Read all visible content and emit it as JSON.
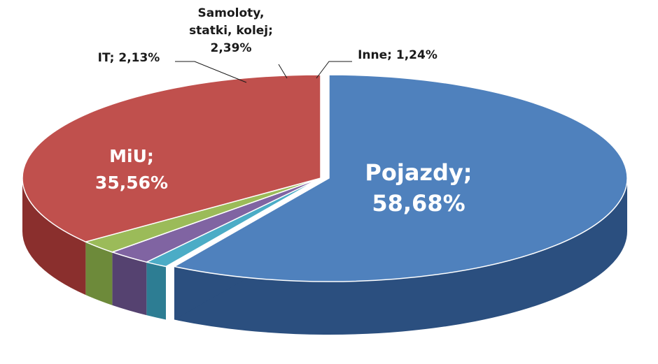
{
  "chart_data": {
    "type": "pie",
    "style": "3d-exploded-first-slice",
    "start_angle_deg": -90,
    "direction": "clockwise",
    "slices": [
      {
        "label": "Pojazdy;",
        "value_label": "58,68%",
        "value": 58.68,
        "color": "#4f81bd",
        "side_color": "#2b4f7f",
        "label_position": "inside"
      },
      {
        "label": "Inne; 1,24%",
        "value_label": "",
        "value": 1.24,
        "color": "#4bacc6",
        "side_color": "#2d7d93",
        "label_position": "outside"
      },
      {
        "label": "Samoloty, statki, kolej;",
        "value_label": "2,39%",
        "value": 2.39,
        "color": "#8064a2",
        "side_color": "#554270",
        "label_position": "outside"
      },
      {
        "label": "IT; 2,13%",
        "value_label": "",
        "value": 2.13,
        "color": "#9bbb59",
        "side_color": "#6d8a3a",
        "label_position": "outside"
      },
      {
        "label": "MiU;",
        "value_label": "35,56%",
        "value": 35.56,
        "color": "#c0504d",
        "side_color": "#8a2f2d",
        "label_position": "inside"
      }
    ]
  }
}
